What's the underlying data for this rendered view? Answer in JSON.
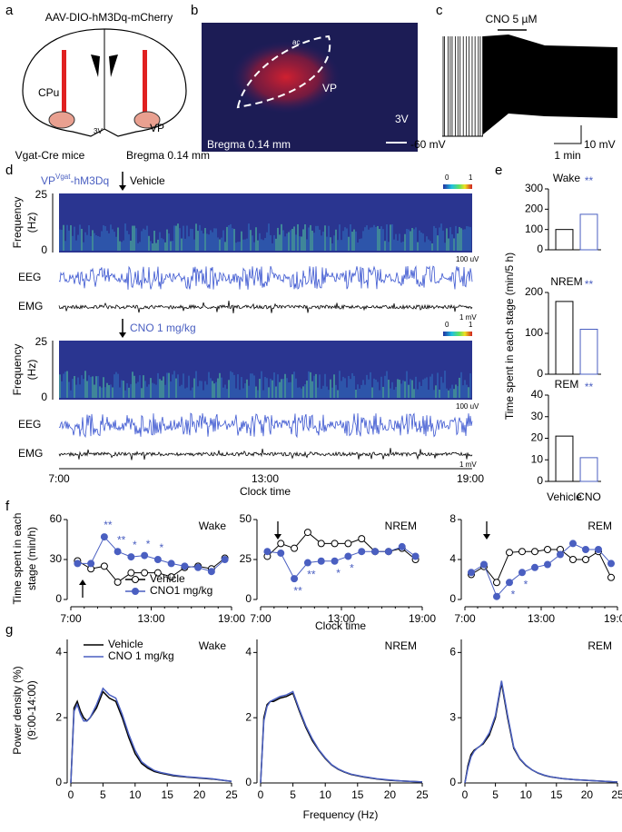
{
  "panels": {
    "a": {
      "label": "a",
      "title": "AAV-DIO-hM3Dq-mCherry",
      "regions": [
        "CPu",
        "VP",
        "3V"
      ],
      "mouse": "Vgat-Cre mice",
      "bregma": "Bregma 0.14 mm"
    },
    "b": {
      "label": "b",
      "regions": [
        "ac",
        "VP",
        "3V"
      ],
      "bregma": "Bregma 0.14 mm"
    },
    "c": {
      "label": "c",
      "drug": "CNO 5 µM",
      "baseline": "-60 mV",
      "time_scale": "1 min",
      "voltage_scale": "10 mV"
    },
    "d": {
      "label": "d",
      "construct": "VP",
      "construct_sup": "Vgat",
      "construct_suffix": "-hM3Dq",
      "treatments": [
        "Vehicle",
        "CNO 1 mg/kg"
      ],
      "spectrogram_label": [
        "Frequency",
        "(Hz)"
      ],
      "spectrogram_ticks": [
        "25",
        "0"
      ],
      "colorbar_ticks": [
        "0",
        "1"
      ],
      "signals": [
        "EEG",
        "EMG"
      ],
      "eeg_scale": "100 uV",
      "emg_scale": "1 mV",
      "time_ticks": [
        "7:00",
        "13:00",
        "19:00"
      ],
      "xlabel": "Clock time"
    },
    "e": {
      "label": "e",
      "ylabel": "Time spent in each stage (min/5 h)"
    },
    "f": {
      "label": "f",
      "ylabel": [
        "Time spent in each",
        "stage (min/h)"
      ],
      "xlabel": "Clock time"
    },
    "g": {
      "label": "g",
      "ylabel": [
        "Power density (%)",
        "(9:00-14:00)"
      ],
      "xlabel": "Frequency (Hz)"
    }
  },
  "chart_data": [
    {
      "type": "bar",
      "title": "Wake",
      "categories": [
        null,
        null
      ],
      "values": [
        100,
        175
      ],
      "colors": [
        "#000000",
        "#4a5fc1"
      ],
      "significance": [
        null,
        "**"
      ],
      "ylim": [
        0,
        300
      ],
      "yticks": [
        0,
        100,
        200,
        300
      ]
    },
    {
      "type": "bar",
      "title": "NREM",
      "categories": [
        null,
        null
      ],
      "values": [
        178,
        110
      ],
      "colors": [
        "#000000",
        "#4a5fc1"
      ],
      "significance": [
        null,
        "**"
      ],
      "ylim": [
        0,
        200
      ],
      "yticks": [
        0,
        100,
        200
      ]
    },
    {
      "type": "bar",
      "title": "REM",
      "categories": [
        "Vehicle",
        "CNO"
      ],
      "values": [
        21,
        11
      ],
      "colors": [
        "#000000",
        "#4a5fc1"
      ],
      "significance": [
        null,
        "**"
      ],
      "ylim": [
        0,
        40
      ],
      "yticks": [
        0,
        10,
        20,
        30,
        40
      ]
    },
    {
      "type": "line",
      "title": "Wake",
      "markers": true,
      "legend": "lower center",
      "x": [
        7.5,
        8.5,
        9.5,
        10.5,
        11.5,
        12.5,
        13.5,
        14.5,
        15.5,
        16.5,
        17.5,
        18.5
      ],
      "series": [
        {
          "name": "Vehicle",
          "color": "#000000",
          "marker": "open",
          "values": [
            29,
            23,
            25,
            13,
            20,
            20,
            20,
            17,
            24,
            25,
            23,
            31
          ]
        },
        {
          "name": "CNO1 mg/kg",
          "color": "#4a5fc1",
          "marker": "filled",
          "values": [
            27,
            27,
            47,
            36,
            32,
            33,
            30,
            27,
            25,
            24,
            21,
            30
          ],
          "significance": [
            null,
            null,
            "**",
            "**",
            "*",
            "*",
            "*",
            null,
            null,
            null,
            null,
            null
          ]
        }
      ],
      "xlim": [
        7,
        19
      ],
      "xticks": [
        {
          "value": 7,
          "label": "7:00"
        },
        {
          "value": 13,
          "label": "13:00"
        },
        {
          "value": 19,
          "label": "19:00"
        }
      ],
      "ylim": [
        0,
        60
      ],
      "yticks": [
        0,
        30,
        60
      ]
    },
    {
      "type": "line",
      "title": "NREM",
      "markers": true,
      "x": [
        7.5,
        8.5,
        9.5,
        10.5,
        11.5,
        12.5,
        13.5,
        14.5,
        15.5,
        16.5,
        17.5,
        18.5
      ],
      "series": [
        {
          "color": "#000000",
          "marker": "open",
          "values": [
            27,
            35,
            32,
            42,
            35,
            35,
            35,
            38,
            30,
            30,
            32,
            25
          ]
        },
        {
          "color": "#4a5fc1",
          "marker": "filled",
          "values": [
            30,
            29,
            13,
            23,
            24,
            24,
            27,
            30,
            30,
            30,
            33,
            27
          ],
          "significance": [
            null,
            null,
            "**",
            "**",
            null,
            "*",
            "*",
            null,
            null,
            null,
            null,
            null
          ]
        }
      ],
      "xlim": [
        7,
        19
      ],
      "xticks": [
        {
          "value": 7,
          "label": "7:00"
        },
        {
          "value": 13,
          "label": "13:00"
        },
        {
          "value": 19,
          "label": "19:00"
        }
      ],
      "ylim": [
        0,
        50
      ],
      "yticks": [
        0,
        25,
        50
      ]
    },
    {
      "type": "line",
      "title": "REM",
      "markers": true,
      "x": [
        7.5,
        8.5,
        9.5,
        10.5,
        11.5,
        12.5,
        13.5,
        14.5,
        15.5,
        16.5,
        17.5,
        18.5
      ],
      "series": [
        {
          "color": "#000000",
          "marker": "open",
          "values": [
            2.5,
            3.3,
            1.7,
            4.7,
            4.8,
            4.8,
            5,
            5,
            4,
            4,
            4.8,
            2.2
          ]
        },
        {
          "color": "#4a5fc1",
          "marker": "filled",
          "values": [
            2.7,
            3.5,
            0.3,
            1.7,
            2.7,
            3.2,
            3.5,
            4.5,
            5.6,
            5,
            5,
            3.6
          ],
          "significance": [
            null,
            null,
            null,
            "*",
            "*",
            null,
            null,
            null,
            null,
            null,
            null,
            null
          ]
        }
      ],
      "xlim": [
        7,
        19
      ],
      "xticks": [
        {
          "value": 7,
          "label": "7:00"
        },
        {
          "value": 13,
          "label": "13:00"
        },
        {
          "value": 19,
          "label": "19:00"
        }
      ],
      "ylim": [
        0,
        8
      ],
      "yticks": [
        0,
        4,
        8
      ]
    },
    {
      "type": "line",
      "title": "Wake",
      "legend": "upper left",
      "x": [
        0,
        0.5,
        1,
        1.5,
        2,
        2.5,
        3,
        4,
        5,
        6,
        7,
        8,
        9,
        10,
        11,
        12,
        13,
        14,
        16,
        18,
        20,
        22,
        25
      ],
      "series": [
        {
          "name": "Vehicle",
          "color": "#000000",
          "values": [
            0,
            2.3,
            2.5,
            2.2,
            2.0,
            1.9,
            2.0,
            2.3,
            2.8,
            2.6,
            2.5,
            2.0,
            1.4,
            0.9,
            0.6,
            0.45,
            0.35,
            0.3,
            0.22,
            0.18,
            0.15,
            0.12,
            0.05
          ]
        },
        {
          "name": "CNO 1 mg/kg",
          "color": "#4a5fc1",
          "values": [
            0,
            2.2,
            2.4,
            2.1,
            1.9,
            1.9,
            2.0,
            2.4,
            2.9,
            2.7,
            2.6,
            2.1,
            1.5,
            1.0,
            0.65,
            0.5,
            0.38,
            0.32,
            0.24,
            0.19,
            0.16,
            0.13,
            0.05
          ]
        }
      ],
      "xlim": [
        0,
        25
      ],
      "xticks": [
        0,
        5,
        10,
        15,
        20,
        25
      ],
      "ylim": [
        0,
        4.4
      ],
      "yticks": [
        0,
        2,
        4
      ]
    },
    {
      "type": "line",
      "title": "NREM",
      "x": [
        0,
        0.5,
        1,
        1.5,
        2,
        2.5,
        3,
        4,
        5,
        6,
        7,
        8,
        9,
        10,
        11,
        12,
        13,
        14,
        16,
        18,
        20,
        22,
        25
      ],
      "series": [
        {
          "color": "#000000",
          "values": [
            0,
            2.0,
            2.4,
            2.5,
            2.5,
            2.55,
            2.6,
            2.65,
            2.75,
            2.2,
            1.7,
            1.3,
            1.0,
            0.75,
            0.55,
            0.42,
            0.33,
            0.26,
            0.18,
            0.12,
            0.08,
            0.06,
            0.03
          ]
        },
        {
          "color": "#4a5fc1",
          "values": [
            0,
            1.9,
            2.35,
            2.5,
            2.55,
            2.6,
            2.65,
            2.7,
            2.8,
            2.25,
            1.75,
            1.35,
            1.02,
            0.77,
            0.56,
            0.43,
            0.34,
            0.27,
            0.19,
            0.13,
            0.09,
            0.06,
            0.03
          ]
        }
      ],
      "xlim": [
        0,
        25
      ],
      "xticks": [
        0,
        5,
        10,
        15,
        20,
        25
      ],
      "ylim": [
        0,
        4.4
      ],
      "yticks": [
        0,
        2,
        4
      ]
    },
    {
      "type": "line",
      "title": "REM",
      "x": [
        0,
        0.5,
        1,
        1.5,
        2,
        2.5,
        3,
        4,
        5,
        6,
        7,
        8,
        9,
        10,
        11,
        12,
        13,
        14,
        16,
        18,
        20,
        22,
        25
      ],
      "series": [
        {
          "color": "#000000",
          "values": [
            0,
            0.8,
            1.3,
            1.5,
            1.6,
            1.7,
            1.8,
            2.2,
            3.0,
            4.6,
            3.0,
            1.6,
            1.1,
            0.8,
            0.6,
            0.45,
            0.35,
            0.28,
            0.2,
            0.15,
            0.12,
            0.09,
            0.04
          ]
        },
        {
          "color": "#4a5fc1",
          "values": [
            0,
            0.7,
            1.2,
            1.45,
            1.6,
            1.7,
            1.85,
            2.3,
            3.1,
            4.7,
            3.1,
            1.65,
            1.12,
            0.82,
            0.6,
            0.46,
            0.36,
            0.29,
            0.2,
            0.15,
            0.12,
            0.09,
            0.04
          ]
        }
      ],
      "xlim": [
        0,
        25
      ],
      "xticks": [
        0,
        5,
        10,
        15,
        20,
        25
      ],
      "ylim": [
        0,
        6.6
      ],
      "yticks": [
        0,
        3,
        6
      ]
    }
  ]
}
